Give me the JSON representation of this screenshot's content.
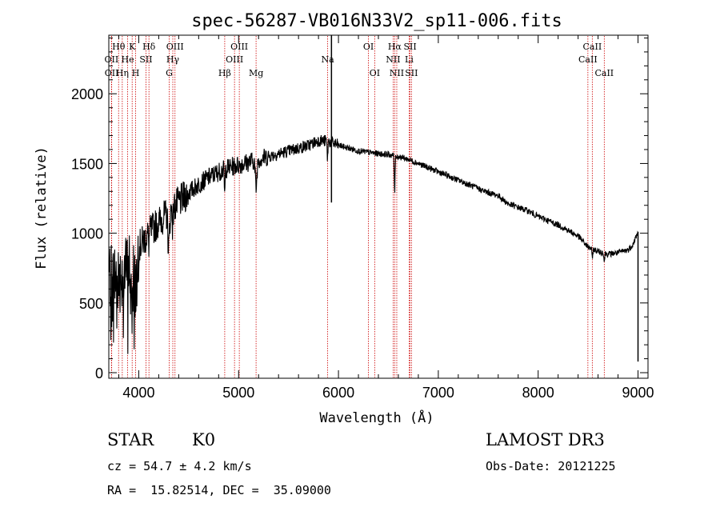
{
  "chart_data": {
    "type": "line",
    "title": "spec-56287-VB016N33V2_sp11-006.fits",
    "xlabel": "Wavelength (Å)",
    "ylabel": "Flux (relative)",
    "xlim": [
      3700,
      9100
    ],
    "ylim": [
      -40,
      2420
    ],
    "xticks": [
      4000,
      5000,
      6000,
      7000,
      8000,
      9000
    ],
    "yticks": [
      0,
      500,
      1000,
      1500,
      2000
    ],
    "continuum": [
      [
        3700,
        700
      ],
      [
        3800,
        680
      ],
      [
        3900,
        760
      ],
      [
        3950,
        820
      ],
      [
        4000,
        900
      ],
      [
        4100,
        1000
      ],
      [
        4200,
        1080
      ],
      [
        4300,
        1150
      ],
      [
        4400,
        1220
      ],
      [
        4500,
        1290
      ],
      [
        4600,
        1350
      ],
      [
        4700,
        1400
      ],
      [
        4800,
        1440
      ],
      [
        4900,
        1470
      ],
      [
        5000,
        1490
      ],
      [
        5100,
        1510
      ],
      [
        5200,
        1530
      ],
      [
        5300,
        1550
      ],
      [
        5400,
        1570
      ],
      [
        5500,
        1590
      ],
      [
        5600,
        1610
      ],
      [
        5700,
        1630
      ],
      [
        5800,
        1665
      ],
      [
        5900,
        1660
      ],
      [
        6000,
        1630
      ],
      [
        6100,
        1610
      ],
      [
        6200,
        1590
      ],
      [
        6300,
        1580
      ],
      [
        6400,
        1570
      ],
      [
        6500,
        1565
      ],
      [
        6600,
        1550
      ],
      [
        6700,
        1530
      ],
      [
        6800,
        1500
      ],
      [
        6900,
        1470
      ],
      [
        7000,
        1440
      ],
      [
        7100,
        1410
      ],
      [
        7200,
        1380
      ],
      [
        7300,
        1350
      ],
      [
        7400,
        1320
      ],
      [
        7500,
        1290
      ],
      [
        7600,
        1270
      ],
      [
        7700,
        1210
      ],
      [
        7800,
        1185
      ],
      [
        7900,
        1160
      ],
      [
        8000,
        1120
      ],
      [
        8100,
        1090
      ],
      [
        8200,
        1060
      ],
      [
        8300,
        1020
      ],
      [
        8400,
        980
      ],
      [
        8500,
        900
      ],
      [
        8600,
        870
      ],
      [
        8700,
        850
      ],
      [
        8800,
        860
      ],
      [
        8900,
        880
      ],
      [
        8950,
        920
      ],
      [
        9000,
        1010
      ]
    ],
    "absorption_features": [
      {
        "wavelength": 3934,
        "depth": 300,
        "width": 8
      },
      {
        "wavelength": 3969,
        "depth": 250,
        "width": 8
      },
      {
        "wavelength": 4101,
        "depth": 80,
        "width": 4
      },
      {
        "wavelength": 4300,
        "depth": 250,
        "width": 8
      },
      {
        "wavelength": 4340,
        "depth": 120,
        "width": 4
      },
      {
        "wavelength": 4861,
        "depth": 180,
        "width": 4
      },
      {
        "wavelength": 5175,
        "depth": 200,
        "width": 8
      },
      {
        "wavelength": 5890,
        "depth": 120,
        "width": 4
      },
      {
        "wavelength": 6563,
        "depth": 260,
        "width": 4
      },
      {
        "wavelength": 8542,
        "depth": 70,
        "width": 4
      },
      {
        "wavelength": 8662,
        "depth": 60,
        "width": 4
      }
    ],
    "spikes": [
      {
        "wavelength": 5930,
        "from": 1220,
        "to": 2420
      },
      {
        "wavelength": 9000,
        "from": 80,
        "to": 1010
      }
    ],
    "spectral_lines": [
      {
        "label": "Hθ",
        "wavelength": 3798,
        "row": 1
      },
      {
        "label": "OII",
        "wavelength": 3727,
        "row": 2
      },
      {
        "label": "OII",
        "wavelength": 3729,
        "row": 3
      },
      {
        "label": "Hη",
        "wavelength": 3835,
        "row": 3
      },
      {
        "label": "He",
        "wavelength": 3889,
        "row": 2
      },
      {
        "label": "K",
        "wavelength": 3934,
        "row": 1
      },
      {
        "label": "H",
        "wavelength": 3969,
        "row": 3
      },
      {
        "label": "SII",
        "wavelength": 4072,
        "row": 2
      },
      {
        "label": "Hδ",
        "wavelength": 4102,
        "row": 1
      },
      {
        "label": "OIII",
        "wavelength": 4363,
        "row": 1
      },
      {
        "label": "Hγ",
        "wavelength": 4341,
        "row": 2
      },
      {
        "label": "G",
        "wavelength": 4305,
        "row": 3
      },
      {
        "label": "Hβ",
        "wavelength": 4861,
        "row": 3
      },
      {
        "label": "OIII",
        "wavelength": 5007,
        "row": 1
      },
      {
        "label": "OIII",
        "wavelength": 4959,
        "row": 2
      },
      {
        "label": "Mg",
        "wavelength": 5175,
        "row": 3
      },
      {
        "label": "Na",
        "wavelength": 5892,
        "row": 2
      },
      {
        "label": "OI",
        "wavelength": 6300,
        "row": 1
      },
      {
        "label": "OI",
        "wavelength": 6363,
        "row": 3
      },
      {
        "label": "Hα",
        "wavelength": 6563,
        "row": 1
      },
      {
        "label": "NII",
        "wavelength": 6548,
        "row": 2
      },
      {
        "label": "NII",
        "wavelength": 6584,
        "row": 3
      },
      {
        "label": "SII",
        "wavelength": 6717,
        "row": 1
      },
      {
        "label": "SII",
        "wavelength": 6731,
        "row": 3
      },
      {
        "label": "Li",
        "wavelength": 6708,
        "row": 2
      },
      {
        "label": "CaII",
        "wavelength": 8542,
        "row": 1
      },
      {
        "label": "CaII",
        "wavelength": 8498,
        "row": 2
      },
      {
        "label": "CaII",
        "wavelength": 8662,
        "row": 3
      }
    ],
    "colors": {
      "spectrum": "#000000",
      "line_markers": "#cc0000",
      "axes": "#000000"
    }
  },
  "info": {
    "object_class": "STAR",
    "subclass": "K0",
    "survey": "LAMOST DR3",
    "redshift_text": "cz = 54.7 ± 4.2 km/s",
    "obs_date_text": "Obs-Date: 20121225",
    "coords_text": "RA =  15.82514, DEC =  35.09000"
  }
}
